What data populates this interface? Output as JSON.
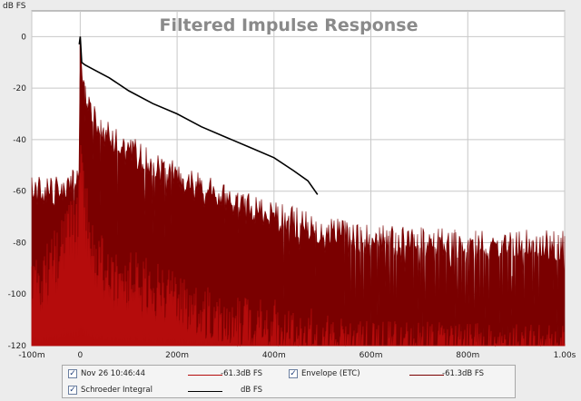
{
  "chart_data": {
    "type": "area",
    "title": "Filtered Impulse Response",
    "ylabel": "dB FS",
    "xlim": [
      -0.1,
      1.0
    ],
    "ylim": [
      -120,
      10
    ],
    "grid": true,
    "x_ticks": [
      {
        "value": -0.1,
        "label": "-100m"
      },
      {
        "value": 0.0,
        "label": "0"
      },
      {
        "value": 0.2,
        "label": "200m"
      },
      {
        "value": 0.4,
        "label": "400m"
      },
      {
        "value": 0.6,
        "label": "600m"
      },
      {
        "value": 0.8,
        "label": "800m"
      },
      {
        "value": 1.0,
        "label": "1.00s"
      }
    ],
    "y_ticks": [
      {
        "value": 0,
        "label": "0"
      },
      {
        "value": -20,
        "label": "-20"
      },
      {
        "value": -40,
        "label": "-40"
      },
      {
        "value": -60,
        "label": "-60"
      },
      {
        "value": -80,
        "label": "-80"
      },
      {
        "value": -100,
        "label": "-100"
      },
      {
        "value": -120,
        "label": "-120"
      }
    ],
    "series": [
      {
        "name": "Nov 26 10:46:44",
        "color": "#b50c0c",
        "kind": "impulse-response",
        "noise_floor_db": -85,
        "peak_db": -40,
        "points": [
          {
            "x": -0.1,
            "y": -95
          },
          {
            "x": -0.06,
            "y": -86
          },
          {
            "x": -0.03,
            "y": -74
          },
          {
            "x": -0.005,
            "y": -68
          },
          {
            "x": 0.0,
            "y": -40
          },
          {
            "x": 0.02,
            "y": -76
          },
          {
            "x": 0.06,
            "y": -88
          },
          {
            "x": 0.12,
            "y": -92
          },
          {
            "x": 0.2,
            "y": -100
          },
          {
            "x": 0.3,
            "y": -106
          },
          {
            "x": 0.45,
            "y": -112
          },
          {
            "x": 0.6,
            "y": -118
          },
          {
            "x": 1.0,
            "y": -120
          }
        ]
      },
      {
        "name": "Envelope (ETC)",
        "color": "#7a0000",
        "kind": "envelope",
        "points": [
          {
            "x": -0.1,
            "y": -60
          },
          {
            "x": -0.05,
            "y": -60
          },
          {
            "x": -0.02,
            "y": -58
          },
          {
            "x": -0.002,
            "y": -56
          },
          {
            "x": 0.0,
            "y": 0
          },
          {
            "x": 0.005,
            "y": -20
          },
          {
            "x": 0.015,
            "y": -27
          },
          {
            "x": 0.05,
            "y": -37
          },
          {
            "x": 0.1,
            "y": -44
          },
          {
            "x": 0.2,
            "y": -55
          },
          {
            "x": 0.3,
            "y": -63
          },
          {
            "x": 0.4,
            "y": -70
          },
          {
            "x": 0.5,
            "y": -75
          },
          {
            "x": 0.6,
            "y": -79
          },
          {
            "x": 0.7,
            "y": -80
          },
          {
            "x": 0.8,
            "y": -81
          },
          {
            "x": 1.0,
            "y": -81
          }
        ]
      },
      {
        "name": "Schroeder Integral",
        "color": "#000000",
        "kind": "line",
        "points": [
          {
            "x": -0.002,
            "y": -3
          },
          {
            "x": 0.0,
            "y": 0
          },
          {
            "x": 0.003,
            "y": -10
          },
          {
            "x": 0.01,
            "y": -11
          },
          {
            "x": 0.03,
            "y": -13
          },
          {
            "x": 0.06,
            "y": -16
          },
          {
            "x": 0.1,
            "y": -21
          },
          {
            "x": 0.15,
            "y": -26
          },
          {
            "x": 0.2,
            "y": -30
          },
          {
            "x": 0.25,
            "y": -35
          },
          {
            "x": 0.3,
            "y": -39
          },
          {
            "x": 0.35,
            "y": -43
          },
          {
            "x": 0.4,
            "y": -47
          },
          {
            "x": 0.44,
            "y": -52
          },
          {
            "x": 0.47,
            "y": -56
          },
          {
            "x": 0.49,
            "y": -61.3
          }
        ]
      }
    ]
  },
  "legend": {
    "items": [
      {
        "label": "Nov 26 10:46:44",
        "value": "-61.3dB FS",
        "color": "#b50c0c",
        "checked": true
      },
      {
        "label": "Envelope (ETC)",
        "value": "-61.3dB FS",
        "color": "#7a0000",
        "checked": true
      },
      {
        "label": "Schroeder Integral",
        "value": "dB FS",
        "color": "#000000",
        "checked": true
      }
    ]
  }
}
